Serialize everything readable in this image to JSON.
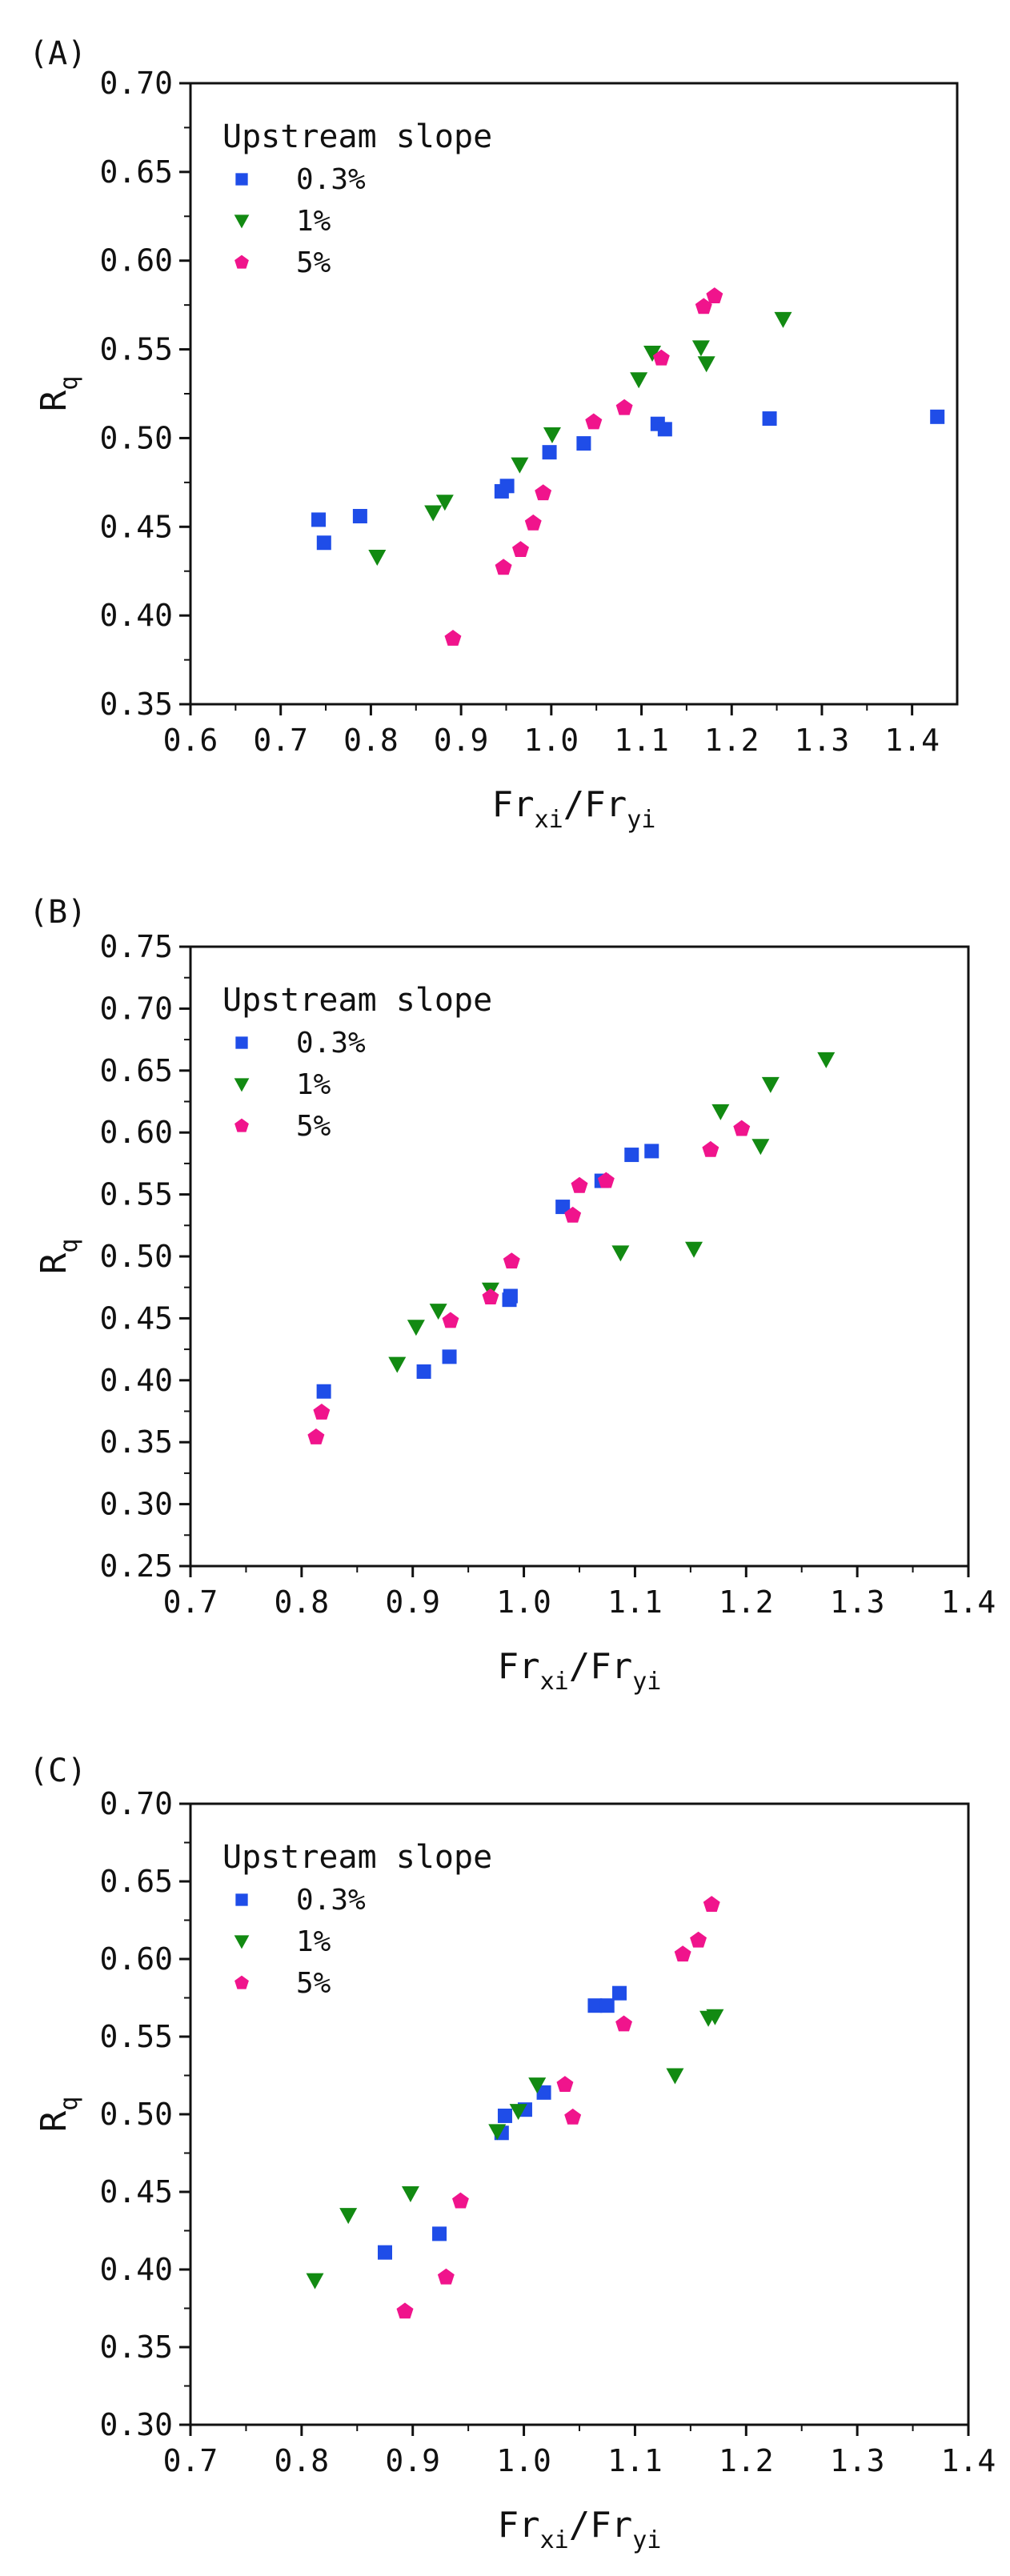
{
  "colors": {
    "s03": "#1f4de8",
    "s1": "#128a12",
    "s5": "#f0148c"
  },
  "chart_data": [
    {
      "type": "scatter",
      "panel_label": "(A)",
      "title": "",
      "xlabel": "Fr_xi/Fr_yi",
      "xlabel_main": "Fr",
      "xlabel_sub1": "xi",
      "xlabel_mid": "/Fr",
      "xlabel_sub2": "yi",
      "ylabel": "R_q",
      "ylabel_main": "R",
      "ylabel_sub": "q",
      "xlim": [
        0.6,
        1.45
      ],
      "ylim": [
        0.35,
        0.7
      ],
      "xticks": [
        "0.6",
        "0.7",
        "0.8",
        "0.9",
        "1.0",
        "1.1",
        "1.2",
        "1.3",
        "1.4"
      ],
      "yticks": [
        "0.35",
        "0.40",
        "0.45",
        "0.50",
        "0.55",
        "0.60",
        "0.65",
        "0.70"
      ],
      "legend_title": "Upstream slope",
      "legend_position": "top-left",
      "series": [
        {
          "name": "0.3%",
          "marker": "square",
          "color": "#1f4de8",
          "x": [
            0.742,
            0.748,
            0.788,
            0.945,
            0.951,
            0.998,
            1.036,
            1.118,
            1.126,
            1.242,
            1.428
          ],
          "y": [
            0.454,
            0.441,
            0.456,
            0.47,
            0.473,
            0.492,
            0.497,
            0.508,
            0.505,
            0.511,
            0.512
          ]
        },
        {
          "name": "1%",
          "marker": "triangle-down",
          "color": "#128a12",
          "x": [
            0.807,
            0.869,
            0.882,
            0.965,
            1.001,
            1.097,
            1.112,
            1.166,
            1.172,
            1.257
          ],
          "y": [
            0.433,
            0.458,
            0.464,
            0.485,
            0.502,
            0.533,
            0.548,
            0.551,
            0.542,
            0.567
          ]
        },
        {
          "name": "5%",
          "marker": "pentagon",
          "color": "#f0148c",
          "x": [
            0.891,
            0.947,
            0.966,
            0.98,
            0.991,
            1.047,
            1.081,
            1.122,
            1.169,
            1.181
          ],
          "y": [
            0.387,
            0.427,
            0.437,
            0.452,
            0.469,
            0.509,
            0.517,
            0.545,
            0.574,
            0.58
          ]
        }
      ]
    },
    {
      "type": "scatter",
      "panel_label": "(B)",
      "title": "",
      "xlabel": "Fr_xi/Fr_yi",
      "xlabel_main": "Fr",
      "xlabel_sub1": "xi",
      "xlabel_mid": "/Fr",
      "xlabel_sub2": "yi",
      "ylabel": "R_q",
      "ylabel_main": "R",
      "ylabel_sub": "q",
      "xlim": [
        0.7,
        1.4
      ],
      "ylim": [
        0.25,
        0.75
      ],
      "xticks": [
        "0.7",
        "0.8",
        "0.9",
        "1.0",
        "1.1",
        "1.2",
        "1.3",
        "1.4"
      ],
      "yticks": [
        "0.25",
        "0.30",
        "0.35",
        "0.40",
        "0.45",
        "0.50",
        "0.55",
        "0.60",
        "0.65",
        "0.70",
        "0.75"
      ],
      "legend_title": "Upstream slope",
      "legend_position": "top-left",
      "series": [
        {
          "name": "0.3%",
          "marker": "square",
          "color": "#1f4de8",
          "x": [
            0.82,
            0.91,
            0.933,
            0.987,
            0.988,
            1.035,
            1.07,
            1.097,
            1.115
          ],
          "y": [
            0.391,
            0.407,
            0.419,
            0.465,
            0.468,
            0.54,
            0.561,
            0.582,
            0.585
          ]
        },
        {
          "name": "1%",
          "marker": "triangle-down",
          "color": "#128a12",
          "x": [
            0.886,
            0.903,
            0.923,
            0.97,
            1.087,
            1.153,
            1.177,
            1.213,
            1.222,
            1.272
          ],
          "y": [
            0.413,
            0.443,
            0.456,
            0.473,
            0.503,
            0.506,
            0.617,
            0.589,
            0.639,
            0.659
          ]
        },
        {
          "name": "5%",
          "marker": "pentagon",
          "color": "#f0148c",
          "x": [
            0.813,
            0.818,
            0.934,
            0.97,
            0.989,
            1.044,
            1.05,
            1.074,
            1.168,
            1.196
          ],
          "y": [
            0.354,
            0.374,
            0.448,
            0.467,
            0.496,
            0.533,
            0.557,
            0.561,
            0.586,
            0.603
          ]
        }
      ]
    },
    {
      "type": "scatter",
      "panel_label": "(C)",
      "title": "",
      "xlabel": "Fr_xi/Fr_yi",
      "xlabel_main": "Fr",
      "xlabel_sub1": "xi",
      "xlabel_mid": "/Fr",
      "xlabel_sub2": "yi",
      "ylabel": "R_q",
      "ylabel_main": "R",
      "ylabel_sub": "q",
      "xlim": [
        0.7,
        1.4
      ],
      "ylim": [
        0.3,
        0.7
      ],
      "xticks": [
        "0.7",
        "0.8",
        "0.9",
        "1.0",
        "1.1",
        "1.2",
        "1.3",
        "1.4"
      ],
      "yticks": [
        "0.30",
        "0.35",
        "0.40",
        "0.45",
        "0.50",
        "0.55",
        "0.60",
        "0.65",
        "0.70"
      ],
      "legend_title": "Upstream slope",
      "legend_position": "top-left",
      "series": [
        {
          "name": "0.3%",
          "marker": "square",
          "color": "#1f4de8",
          "x": [
            0.875,
            0.924,
            0.98,
            0.983,
            1.001,
            1.018,
            1.064,
            1.075,
            1.086
          ],
          "y": [
            0.411,
            0.423,
            0.488,
            0.499,
            0.503,
            0.514,
            0.57,
            0.57,
            0.578
          ]
        },
        {
          "name": "1%",
          "marker": "triangle-down",
          "color": "#128a12",
          "x": [
            0.812,
            0.842,
            0.898,
            0.976,
            0.995,
            1.012,
            1.136,
            1.166,
            1.172
          ],
          "y": [
            0.393,
            0.435,
            0.449,
            0.489,
            0.502,
            0.519,
            0.525,
            0.562,
            0.563
          ]
        },
        {
          "name": "5%",
          "marker": "pentagon",
          "color": "#f0148c",
          "x": [
            0.893,
            0.93,
            0.943,
            1.037,
            1.044,
            1.09,
            1.143,
            1.157,
            1.169
          ],
          "y": [
            0.373,
            0.395,
            0.444,
            0.519,
            0.498,
            0.558,
            0.603,
            0.612,
            0.635
          ]
        }
      ]
    }
  ]
}
